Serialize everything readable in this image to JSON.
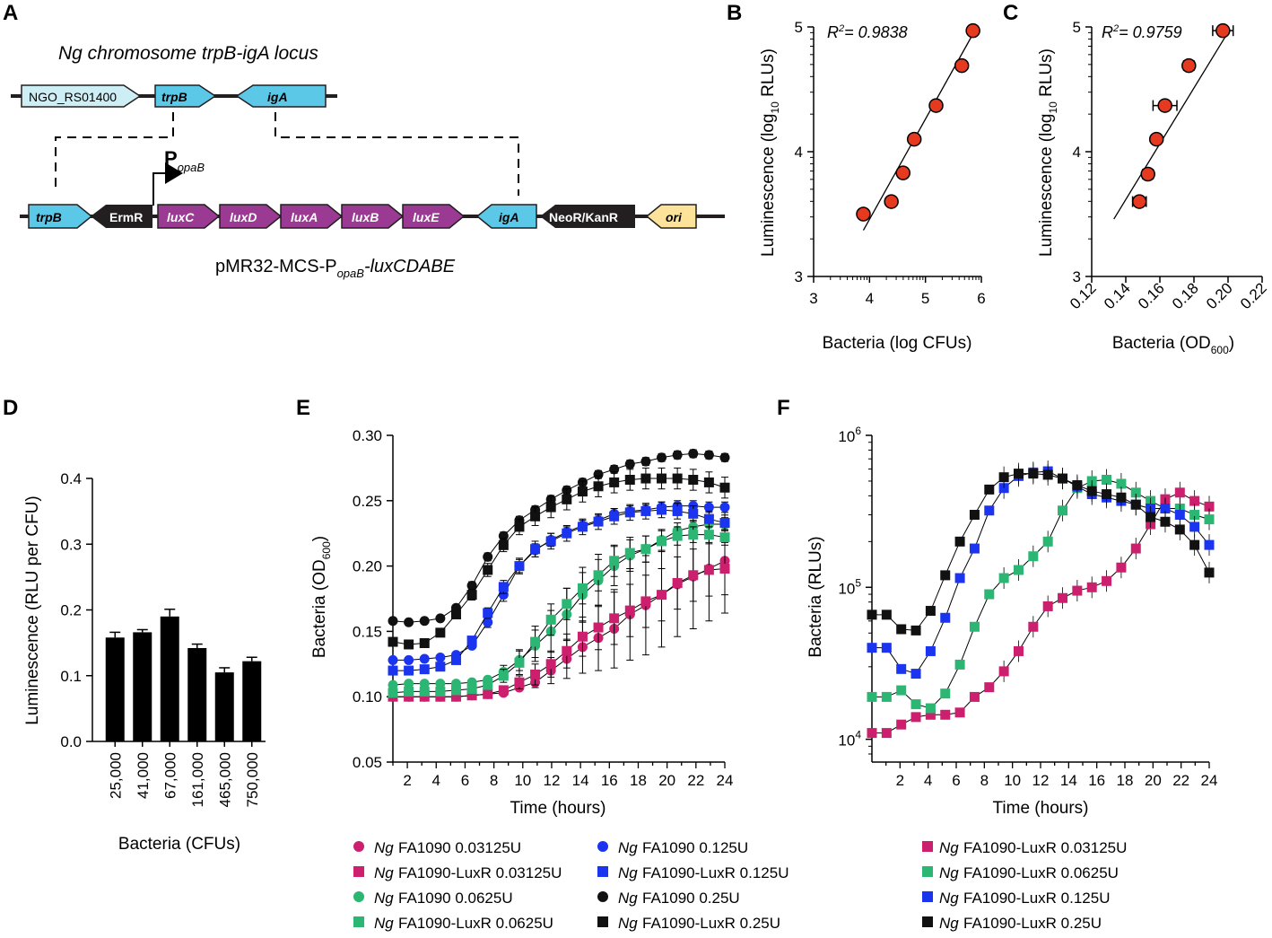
{
  "panels": {
    "A": "A",
    "B": "B",
    "C": "C",
    "D": "D",
    "E": "E",
    "F": "F"
  },
  "panelA": {
    "title": "Ng chromosome trpB-igA locus",
    "chromosome_genes": [
      "NGO_RS01400",
      "trpB",
      "igA"
    ],
    "promoter_main": "P",
    "promoter_sub": "opaB",
    "construct_genes": [
      "trpB",
      "ErmR",
      "luxC",
      "luxD",
      "luxA",
      "luxB",
      "luxE",
      "igA",
      "NeoR/KanR",
      "ori"
    ],
    "plasmid_prefix": "pMR32-MCS-P",
    "plasmid_sub": "opaB",
    "plasmid_suffix": "-luxCDABE",
    "colors": {
      "ngo": "#cdeef5",
      "gene": "#5bc8e8",
      "lux": "#9b3a92",
      "resist": "#231f20",
      "ori": "#fde39a"
    }
  },
  "chart_data": [
    {
      "id": "B",
      "type": "scatter",
      "annotation_main": "R",
      "annotation_sup": "2",
      "annotation_rest": "= 0.9838",
      "xlabel": "Bacteria (log CFUs)",
      "ylabel_main": "Luminescence (log",
      "ylabel_sub": "10",
      "ylabel_rest": " RLUs)",
      "xlim": [
        3,
        6
      ],
      "ylim": [
        3,
        5
      ],
      "xticks": [
        "3",
        "4",
        "5",
        "6"
      ],
      "yticks": [
        "3",
        "4",
        "5"
      ],
      "x": [
        3.89,
        4.39,
        4.6,
        4.8,
        5.19,
        5.65,
        5.85
      ],
      "y": [
        3.5,
        3.6,
        3.83,
        4.1,
        4.37,
        4.69,
        4.97
      ],
      "fit": {
        "x": [
          3.89,
          5.92
        ],
        "y": [
          3.37,
          5.0
        ]
      },
      "marker_color": "#e53a1f"
    },
    {
      "id": "C",
      "type": "scatter",
      "annotation_main": "R",
      "annotation_sup": "2",
      "annotation_rest": "= 0.9759",
      "xlabel_main": "Bacteria (OD",
      "xlabel_sub": "600",
      "xlabel_rest": ")",
      "ylabel_main": "Luminescence (log",
      "ylabel_sub": "10",
      "ylabel_rest": " RLUs)",
      "xlim": [
        0.12,
        0.22
      ],
      "ylim": [
        3,
        5
      ],
      "xticks": [
        "0.12",
        "0.14",
        "0.16",
        "0.18",
        "0.20",
        "0.22"
      ],
      "yticks": [
        "3",
        "4",
        "5"
      ],
      "x": [
        0.148,
        0.153,
        0.158,
        0.163,
        0.177,
        0.197
      ],
      "xerr": [
        0.004,
        0.003,
        0.002,
        0.007,
        0.003,
        0.006
      ],
      "y": [
        3.6,
        3.82,
        4.1,
        4.37,
        4.69,
        4.97
      ],
      "fit": {
        "x": [
          0.133,
          0.201
        ],
        "y": [
          3.46,
          4.98
        ]
      },
      "marker_color": "#e53a1f"
    },
    {
      "id": "D",
      "type": "bar",
      "categories": [
        "25,000",
        "41,000",
        "67,000",
        "161,000",
        "465,000",
        "750,000"
      ],
      "values": [
        0.158,
        0.166,
        0.19,
        0.142,
        0.105,
        0.122
      ],
      "errors": [
        0.008,
        0.004,
        0.011,
        0.006,
        0.007,
        0.006
      ],
      "xlabel": "Bacteria (CFUs)",
      "ylabel": "Luminescence (RLU per CFU)",
      "ylim": [
        0,
        0.4
      ],
      "yticks": [
        "0.0",
        "0.1",
        "0.2",
        "0.3",
        "0.4"
      ]
    },
    {
      "id": "E",
      "type": "line",
      "xlabel": "Time (hours)",
      "ylabel_main": "Bacteria (OD",
      "ylabel_sub": "600",
      "ylabel_rest": ")",
      "xlim": [
        1,
        24
      ],
      "ylim": [
        0.05,
        0.3
      ],
      "xticks": [
        "2",
        "4",
        "6",
        "8",
        "10",
        "12",
        "14",
        "16",
        "18",
        "20",
        "22",
        "24"
      ],
      "yticks": [
        "0.05",
        "0.10",
        "0.15",
        "0.20",
        "0.25",
        "0.30"
      ],
      "series": [
        {
          "prefix": "Ng",
          "name": "FA1090 0.03125U",
          "marker": "circle",
          "color": "#cc1f6e",
          "values": [
            0.1,
            0.1,
            0.1,
            0.1,
            0.1,
            0.101,
            0.102,
            0.103,
            0.107,
            0.111,
            0.12,
            0.129,
            0.138,
            0.145,
            0.152,
            0.163,
            0.17,
            0.178,
            0.186,
            0.192,
            0.198,
            0.204
          ],
          "errors": [
            0,
            0,
            0,
            0,
            0,
            0,
            0,
            0,
            0,
            0.004,
            0.01,
            0.015,
            0.02,
            0.025,
            0.03,
            0.035,
            0.038,
            0.04,
            0.04,
            0.04,
            0.04,
            0.04
          ]
        },
        {
          "prefix": "Ng",
          "name": "FA1090-LuxR 0.03125U",
          "marker": "square",
          "color": "#cc1f6e",
          "values": [
            0.1,
            0.1,
            0.1,
            0.1,
            0.1,
            0.101,
            0.102,
            0.105,
            0.111,
            0.117,
            0.125,
            0.135,
            0.146,
            0.153,
            0.16,
            0.166,
            0.173,
            0.178,
            0.187,
            0.193,
            0.197,
            0.198
          ],
          "errors": [
            0,
            0,
            0,
            0,
            0,
            0,
            0,
            0.003,
            0.005,
            0.008,
            0.01,
            0.013,
            0.015,
            0.017,
            0.02,
            0.02,
            0.02,
            0.02,
            0.02,
            0.02,
            0.02,
            0.02
          ]
        },
        {
          "prefix": "Ng",
          "name": "FA1090 0.0625U",
          "marker": "circle",
          "color": "#2bb673",
          "values": [
            0.109,
            0.11,
            0.11,
            0.11,
            0.11,
            0.111,
            0.113,
            0.119,
            0.128,
            0.139,
            0.15,
            0.163,
            0.178,
            0.189,
            0.2,
            0.208,
            0.213,
            0.22,
            0.227,
            0.23,
            0.232,
            0.232
          ],
          "errors": [
            0,
            0,
            0,
            0,
            0,
            0.001,
            0.002,
            0.005,
            0.008,
            0.012,
            0.016,
            0.02,
            0.021,
            0.02,
            0.015,
            0.012,
            0.01,
            0.008,
            0.006,
            0.005,
            0.005,
            0.005
          ]
        },
        {
          "prefix": "Ng",
          "name": "FA1090-LuxR 0.0625U",
          "marker": "square",
          "color": "#2bb673",
          "values": [
            0.103,
            0.104,
            0.104,
            0.104,
            0.105,
            0.106,
            0.109,
            0.116,
            0.126,
            0.142,
            0.159,
            0.171,
            0.183,
            0.193,
            0.204,
            0.21,
            0.213,
            0.219,
            0.223,
            0.224,
            0.224,
            0.222
          ],
          "errors": [
            0,
            0,
            0,
            0,
            0,
            0.001,
            0.002,
            0.005,
            0.009,
            0.012,
            0.012,
            0.012,
            0.012,
            0.012,
            0.012,
            0.012,
            0.01,
            0.008,
            0.007,
            0.006,
            0.006,
            0.006
          ]
        },
        {
          "prefix": "Ng",
          "name": "FA1090 0.125U",
          "marker": "circle",
          "color": "#1a34f0",
          "values": [
            0.128,
            0.128,
            0.129,
            0.13,
            0.132,
            0.139,
            0.157,
            0.178,
            0.2,
            0.212,
            0.22,
            0.226,
            0.231,
            0.235,
            0.24,
            0.242,
            0.243,
            0.245,
            0.246,
            0.246,
            0.245,
            0.245
          ],
          "errors": [
            0,
            0,
            0,
            0,
            0,
            0.002,
            0.004,
            0.005,
            0.005,
            0.005,
            0.005,
            0.004,
            0.004,
            0.004,
            0.004,
            0.004,
            0.004,
            0.004,
            0.004,
            0.004,
            0.004,
            0.004
          ]
        },
        {
          "prefix": "Ng",
          "name": "FA1090-LuxR 0.125U",
          "marker": "square",
          "color": "#1a34f0",
          "values": [
            0.12,
            0.12,
            0.121,
            0.123,
            0.128,
            0.143,
            0.164,
            0.184,
            0.2,
            0.213,
            0.219,
            0.225,
            0.23,
            0.234,
            0.238,
            0.241,
            0.242,
            0.243,
            0.242,
            0.24,
            0.236,
            0.233
          ],
          "errors": [
            0,
            0,
            0,
            0,
            0,
            0.002,
            0.004,
            0.005,
            0.006,
            0.006,
            0.006,
            0.006,
            0.006,
            0.006,
            0.006,
            0.006,
            0.006,
            0.006,
            0.006,
            0.006,
            0.006,
            0.006
          ]
        },
        {
          "prefix": "Ng",
          "name": "FA1090 0.25U",
          "marker": "circle",
          "color": "#111111",
          "values": [
            0.158,
            0.157,
            0.158,
            0.16,
            0.168,
            0.185,
            0.207,
            0.223,
            0.235,
            0.243,
            0.251,
            0.258,
            0.264,
            0.27,
            0.274,
            0.278,
            0.28,
            0.283,
            0.285,
            0.286,
            0.285,
            0.283
          ],
          "errors": [
            0,
            0,
            0,
            0,
            0.002,
            0.003,
            0.003,
            0.003,
            0.003,
            0.003,
            0.003,
            0.003,
            0.003,
            0.003,
            0.003,
            0.003,
            0.003,
            0.003,
            0.003,
            0.003,
            0.003,
            0.003
          ]
        },
        {
          "prefix": "Ng",
          "name": "FA1090-LuxR 0.25U",
          "marker": "square",
          "color": "#111111",
          "values": [
            0.142,
            0.14,
            0.141,
            0.149,
            0.163,
            0.178,
            0.197,
            0.216,
            0.23,
            0.238,
            0.245,
            0.251,
            0.257,
            0.261,
            0.264,
            0.266,
            0.267,
            0.267,
            0.267,
            0.266,
            0.264,
            0.26
          ],
          "errors": [
            0,
            0,
            0,
            0.002,
            0.003,
            0.004,
            0.005,
            0.005,
            0.006,
            0.007,
            0.008,
            0.008,
            0.008,
            0.008,
            0.008,
            0.008,
            0.008,
            0.008,
            0.008,
            0.008,
            0.008,
            0.008
          ]
        }
      ]
    },
    {
      "id": "F",
      "type": "line",
      "xlabel": "Time (hours)",
      "ylabel": "Bacteria (RLUs)",
      "xlim": [
        0,
        24
      ],
      "ylim_log10": [
        3.85,
        6
      ],
      "xticks": [
        "2",
        "4",
        "6",
        "8",
        "10",
        "12",
        "14",
        "16",
        "18",
        "20",
        "22",
        "24"
      ],
      "ytick_base": "10",
      "ytick_exps": [
        "4",
        "5",
        "6"
      ],
      "series": [
        {
          "prefix": "Ng",
          "name": "FA1090-LuxR  0.03125U",
          "marker": "square",
          "color": "#cc1f6e",
          "values": [
            11000,
            11000,
            12500,
            14000,
            14500,
            14500,
            15000,
            19000,
            22000,
            28000,
            38000,
            55000,
            75000,
            85000,
            95000,
            100000,
            110000,
            135000,
            180000,
            260000,
            380000,
            420000,
            370000,
            340000
          ]
        },
        {
          "prefix": "Ng",
          "name": "FA1090-LuxR  0.0625U",
          "marker": "square",
          "color": "#2bb673",
          "values": [
            19000,
            19000,
            21000,
            17000,
            16000,
            20000,
            31000,
            55000,
            90000,
            115000,
            130000,
            160000,
            200000,
            320000,
            450000,
            500000,
            510000,
            480000,
            420000,
            370000,
            330000,
            330000,
            300000,
            280000
          ]
        },
        {
          "prefix": "Ng",
          "name": "FA1090-LuxR  0.125U",
          "marker": "square",
          "color": "#1a34f0",
          "values": [
            40000,
            40000,
            29000,
            27000,
            38000,
            63000,
            115000,
            180000,
            320000,
            450000,
            540000,
            570000,
            580000,
            520000,
            460000,
            410000,
            390000,
            370000,
            350000,
            330000,
            330000,
            300000,
            250000,
            190000
          ]
        },
        {
          "prefix": "Ng",
          "name": "FA1090-LuxR  0.25U",
          "marker": "square",
          "color": "#111111",
          "values": [
            66000,
            66000,
            53000,
            52000,
            70000,
            120000,
            200000,
            300000,
            440000,
            530000,
            560000,
            560000,
            550000,
            520000,
            470000,
            430000,
            410000,
            390000,
            350000,
            290000,
            270000,
            240000,
            190000,
            125000
          ]
        }
      ]
    }
  ]
}
